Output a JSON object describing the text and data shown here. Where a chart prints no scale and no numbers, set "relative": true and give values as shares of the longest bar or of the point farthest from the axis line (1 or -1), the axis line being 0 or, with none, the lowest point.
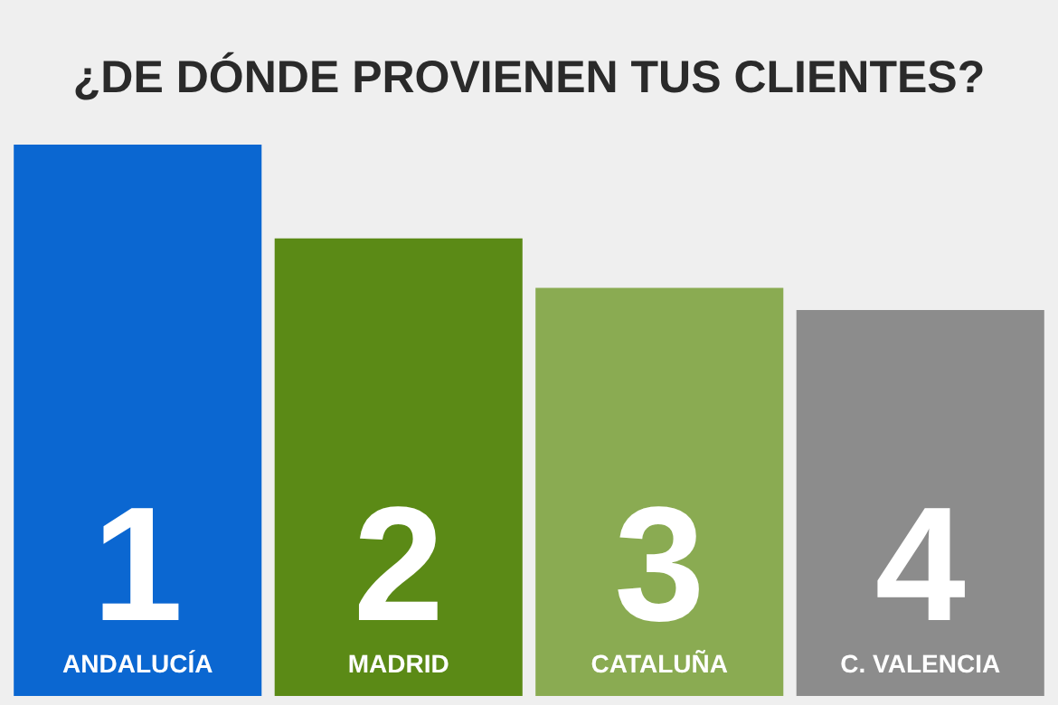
{
  "chart_data": {
    "type": "bar",
    "title": "¿DE DÓNDE PROVIENEN TUS CLIENTES?",
    "categories": [
      "ANDALUCÍA",
      "MADRID",
      "CATALUÑA",
      "C. VALENCIA"
    ],
    "values": [
      1,
      0.83,
      0.74,
      0.7
    ],
    "colors": [
      "#0b67d1",
      "#5b8a16",
      "#8aab52",
      "#8c8c8c"
    ],
    "relative": true,
    "legend": false,
    "annotations": [
      "1",
      "2",
      "3",
      "4"
    ]
  }
}
